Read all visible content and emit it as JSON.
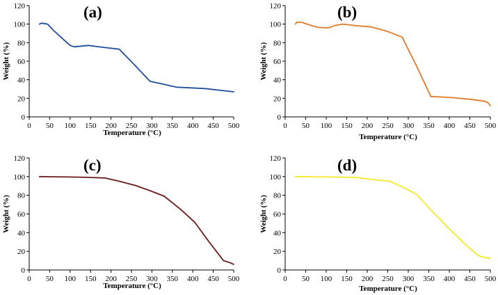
{
  "figure": {
    "caption": ""
  },
  "chart_data": [
    {
      "type": "line",
      "panel_label": "(a)",
      "xlabel": "Temperature (°C)",
      "ylabel": "Weight (%)",
      "xlim": [
        0,
        500
      ],
      "ylim": [
        0,
        120
      ],
      "xticks": [
        0,
        50,
        100,
        150,
        200,
        250,
        300,
        350,
        400,
        450,
        500
      ],
      "yticks": [
        0,
        20,
        40,
        60,
        80,
        100,
        120
      ],
      "color": "#1f4e9c",
      "series": [
        {
          "name": "(a)",
          "x": [
            25,
            30,
            45,
            60,
            80,
            100,
            110,
            120,
            145,
            180,
            220,
            260,
            295,
            360,
            430,
            500
          ],
          "y": [
            100,
            101,
            100,
            93,
            85,
            77,
            75.5,
            76,
            77,
            75,
            73,
            55,
            38.5,
            32,
            30.5,
            27
          ]
        }
      ]
    },
    {
      "type": "line",
      "panel_label": "(b)",
      "xlabel": "Temperature (°C)",
      "ylabel": "Weight (%)",
      "xlim": [
        0,
        500
      ],
      "ylim": [
        0,
        120
      ],
      "xticks": [
        0,
        50,
        100,
        150,
        200,
        250,
        300,
        350,
        400,
        450,
        500
      ],
      "yticks": [
        0,
        20,
        40,
        60,
        80,
        100,
        120
      ],
      "color": "#e07b2a",
      "series": [
        {
          "name": "(b)",
          "x": [
            25,
            28,
            40,
            60,
            80,
            100,
            110,
            120,
            140,
            160,
            180,
            210,
            250,
            285,
            320,
            355,
            400,
            450,
            485,
            495,
            500
          ],
          "y": [
            100,
            102,
            102,
            99,
            96.5,
            96,
            96.5,
            98.5,
            100,
            99,
            98,
            97,
            92,
            86,
            55,
            22,
            21,
            19,
            17,
            15,
            12
          ]
        }
      ]
    },
    {
      "type": "line",
      "panel_label": "(c)",
      "xlabel": "Temperature (°C)",
      "ylabel": "Weight (%)",
      "xlim": [
        0,
        500
      ],
      "ylim": [
        0,
        120
      ],
      "xticks": [
        0,
        50,
        100,
        150,
        200,
        250,
        300,
        350,
        400,
        450,
        500
      ],
      "yticks": [
        0,
        20,
        40,
        60,
        80,
        100,
        120
      ],
      "color": "#6b1a1a",
      "series": [
        {
          "name": "(c)",
          "x": [
            25,
            60,
            100,
            140,
            185,
            220,
            260,
            295,
            330,
            370,
            405,
            440,
            475,
            490,
            500
          ],
          "y": [
            100,
            99.8,
            99.6,
            99.2,
            98.5,
            95,
            90.5,
            85,
            79,
            65,
            51,
            30,
            10,
            8,
            6
          ]
        }
      ]
    },
    {
      "type": "line",
      "panel_label": "(d)",
      "xlabel": "Temperature (°C)",
      "ylabel": "Weight (%)",
      "xlim": [
        0,
        500
      ],
      "ylim": [
        0,
        120
      ],
      "xticks": [
        0,
        50,
        100,
        150,
        200,
        250,
        300,
        350,
        400,
        450,
        500
      ],
      "yticks": [
        0,
        20,
        40,
        60,
        80,
        100,
        120
      ],
      "color": "#f2ea28",
      "series": [
        {
          "name": "(d)",
          "x": [
            25,
            80,
            130,
            175,
            210,
            255,
            290,
            320,
            360,
            400,
            440,
            470,
            490,
            500
          ],
          "y": [
            100,
            99.8,
            99.5,
            99,
            97,
            95,
            88,
            81,
            62,
            44,
            27,
            15.5,
            13,
            12.5
          ]
        }
      ]
    }
  ]
}
